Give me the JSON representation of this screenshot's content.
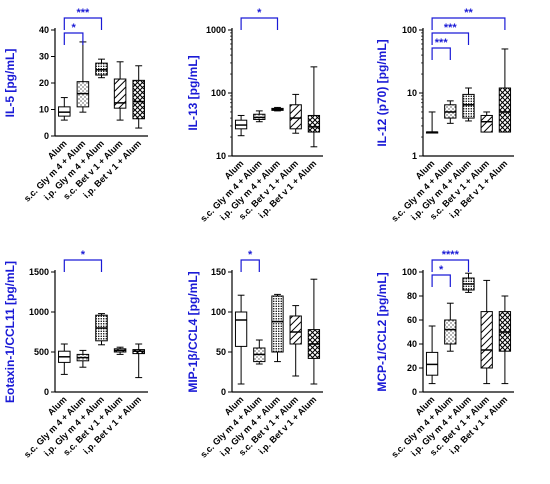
{
  "categories": [
    "Alum",
    "s.c. Gly m 4 + Alum",
    "i.p. Gly m 4 + Alum",
    "s.c. Bet v 1 + Alum",
    "i.p. Bet v 1 + Alum"
  ],
  "colors": {
    "axis": "#000000",
    "annotation": "#1a1ad6",
    "box_fill": "#ffffff"
  },
  "group_patterns": [
    "solid",
    "dots-light",
    "dots-dense",
    "diagonal-hatch",
    "crosshatch"
  ],
  "chart_data": [
    {
      "type": "box",
      "ylabel": "IL-5 [pg/mL]",
      "scale": "linear",
      "ylim": [
        0,
        40
      ],
      "yticks": [
        "0",
        "10",
        "20",
        "30",
        "40"
      ],
      "boxes": [
        {
          "min": 6,
          "q1": 7.5,
          "median": 9,
          "q3": 11,
          "max": 14.5
        },
        {
          "min": 9,
          "q1": 11,
          "median": 16,
          "q3": 20.5,
          "max": 35.5
        },
        {
          "min": 22,
          "q1": 23,
          "median": 25,
          "q3": 27.5,
          "max": 29
        },
        {
          "min": 6,
          "q1": 10.5,
          "median": 12.5,
          "q3": 21.5,
          "max": 28
        },
        {
          "min": 3,
          "q1": 6.5,
          "median": 13,
          "q3": 21,
          "max": 26.5
        }
      ],
      "significance": [
        {
          "from": 0,
          "to": 1,
          "label": "*"
        },
        {
          "from": 0,
          "to": 2,
          "label": "***"
        }
      ]
    },
    {
      "type": "box",
      "ylabel": "IL-13 [pg/mL]",
      "scale": "log",
      "ylim": [
        10,
        1000
      ],
      "yticks": [
        "10",
        "100",
        "1000"
      ],
      "boxes": [
        {
          "min": 21,
          "q1": 27,
          "median": 31,
          "q3": 37,
          "max": 44
        },
        {
          "min": 35,
          "q1": 38,
          "median": 41,
          "q3": 46,
          "max": 52
        },
        {
          "min": 52,
          "q1": 53,
          "median": 55,
          "q3": 57,
          "max": 59
        },
        {
          "min": 23,
          "q1": 27,
          "median": 40,
          "q3": 65,
          "max": 95
        },
        {
          "min": 14,
          "q1": 24,
          "median": 29,
          "q3": 44,
          "max": 260
        }
      ],
      "significance": [
        {
          "from": 0,
          "to": 2,
          "label": "*"
        }
      ]
    },
    {
      "type": "box",
      "ylabel": "IL-12 (p70) [pg/mL]",
      "scale": "log",
      "ylim": [
        1,
        100
      ],
      "yticks": [
        "1",
        "10",
        "100"
      ],
      "boxes": [
        {
          "min": 2.4,
          "q1": 2.4,
          "median": 2.4,
          "q3": 2.4,
          "max": 5
        },
        {
          "min": 3.3,
          "q1": 4,
          "median": 5,
          "q3": 6.5,
          "max": 7.5
        },
        {
          "min": 3.6,
          "q1": 4,
          "median": 6.5,
          "q3": 9.5,
          "max": 12
        },
        {
          "min": 2.4,
          "q1": 2.4,
          "median": 3.5,
          "q3": 4.4,
          "max": 5
        },
        {
          "min": 2.4,
          "q1": 2.4,
          "median": 5,
          "q3": 12,
          "max": 50
        }
      ],
      "significance": [
        {
          "from": 0,
          "to": 1,
          "label": "***"
        },
        {
          "from": 0,
          "to": 2,
          "label": "***"
        },
        {
          "from": 0,
          "to": 4,
          "label": "**"
        }
      ]
    },
    {
      "type": "box",
      "ylabel": "Eotaxin-1/CCL11 [pg/mL]",
      "scale": "linear",
      "ylim": [
        0,
        1500
      ],
      "yticks": [
        "0",
        "500",
        "1000",
        "1500"
      ],
      "boxes": [
        {
          "min": 220,
          "q1": 370,
          "median": 440,
          "q3": 510,
          "max": 600
        },
        {
          "min": 310,
          "q1": 390,
          "median": 430,
          "q3": 470,
          "max": 520
        },
        {
          "min": 590,
          "q1": 640,
          "median": 800,
          "q3": 960,
          "max": 980
        },
        {
          "min": 470,
          "q1": 500,
          "median": 520,
          "q3": 540,
          "max": 560
        },
        {
          "min": 180,
          "q1": 480,
          "median": 510,
          "q3": 530,
          "max": 600
        }
      ],
      "significance": [
        {
          "from": 0,
          "to": 2,
          "label": "*"
        }
      ]
    },
    {
      "type": "box",
      "ylabel": "MIP-1β/CCL4 [pg/mL]",
      "scale": "linear",
      "ylim": [
        0,
        150
      ],
      "yticks": [
        "0",
        "50",
        "100",
        "150"
      ],
      "boxes": [
        {
          "min": 10,
          "q1": 57,
          "median": 90,
          "q3": 100,
          "max": 121
        },
        {
          "min": 35,
          "q1": 38,
          "median": 47,
          "q3": 55,
          "max": 65
        },
        {
          "min": 38,
          "q1": 50,
          "median": 88,
          "q3": 120,
          "max": 122
        },
        {
          "min": 20,
          "q1": 60,
          "median": 75,
          "q3": 95,
          "max": 108
        },
        {
          "min": 10,
          "q1": 42,
          "median": 60,
          "q3": 78,
          "max": 141
        }
      ],
      "significance": [
        {
          "from": 0,
          "to": 1,
          "label": "*"
        }
      ]
    },
    {
      "type": "box",
      "ylabel": "MCP-1/CCL2 [pg/mL]",
      "scale": "linear",
      "ylim": [
        0,
        100
      ],
      "yticks": [
        "0",
        "20",
        "40",
        "60",
        "80",
        "100"
      ],
      "boxes": [
        {
          "min": 7,
          "q1": 14,
          "median": 23,
          "q3": 33,
          "max": 55
        },
        {
          "min": 34,
          "q1": 40,
          "median": 52,
          "q3": 60,
          "max": 74
        },
        {
          "min": 83,
          "q1": 85,
          "median": 90,
          "q3": 95,
          "max": 99
        },
        {
          "min": 7,
          "q1": 20,
          "median": 35,
          "q3": 67,
          "max": 93
        },
        {
          "min": 7,
          "q1": 34,
          "median": 50,
          "q3": 67,
          "max": 80
        }
      ],
      "significance": [
        {
          "from": 0,
          "to": 1,
          "label": "*"
        },
        {
          "from": 0,
          "to": 2,
          "label": "****"
        }
      ]
    }
  ]
}
